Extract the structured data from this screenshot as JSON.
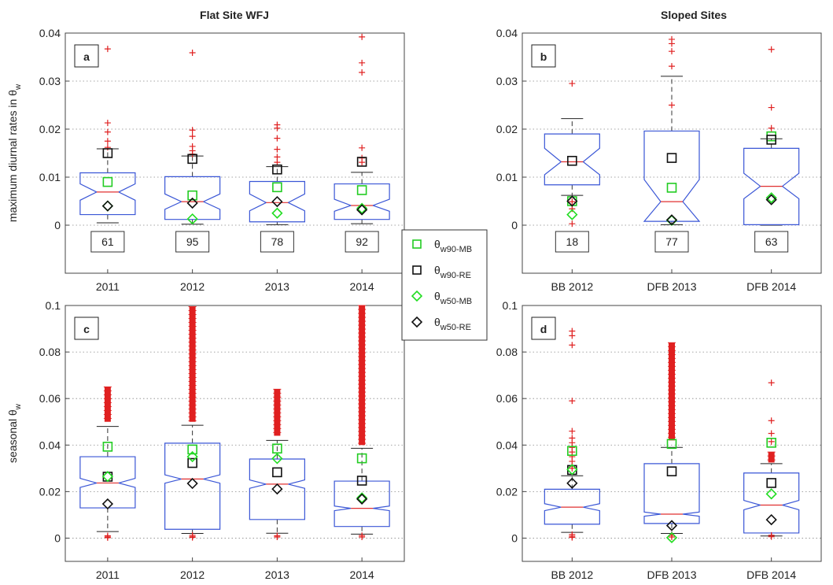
{
  "colors": {
    "box": "#3a56d6",
    "median": "#e03030",
    "outlier": "#e02020",
    "w90MB": "#22cc22",
    "w90RE": "#111111",
    "w50MB": "#22dd22",
    "w50RE": "#111111",
    "grid": "#888888",
    "frame": "#444444"
  },
  "column_titles": [
    "Flat Site WFJ",
    "Sloped Sites"
  ],
  "legend": {
    "items": [
      {
        "sym": "θ",
        "sub": "w90-MB",
        "marker": "square",
        "color": "#22cc22"
      },
      {
        "sym": "θ",
        "sub": "w90-RE",
        "marker": "square",
        "color": "#111111"
      },
      {
        "sym": "θ",
        "sub": "w50-MB",
        "marker": "diamond",
        "color": "#22dd22"
      },
      {
        "sym": "θ",
        "sub": "w50-RE",
        "marker": "diamond",
        "color": "#111111"
      }
    ]
  },
  "chart_data": [
    {
      "panel": "a",
      "type": "box",
      "ylabel": "maximum diurnal rates in θ",
      "ylabel_sub": "w",
      "categories": [
        "2011",
        "2012",
        "2013",
        "2014"
      ],
      "ylim": [
        -0.01,
        0.04
      ],
      "yticks": [
        0,
        0.01,
        0.02,
        0.03,
        0.04
      ],
      "ytick_labels": [
        "0",
        "0.01",
        "0.02",
        "0.03",
        "0.04"
      ],
      "grid": true,
      "boxes": [
        {
          "q1": 0.0022,
          "median": 0.0069,
          "q3": 0.0109,
          "notch_lo": 0.0052,
          "notch_hi": 0.0086,
          "wlo": 0.0005,
          "whi": 0.0159
        },
        {
          "q1": 0.0012,
          "median": 0.0049,
          "q3": 0.0101,
          "notch_lo": 0.0033,
          "notch_hi": 0.0065,
          "wlo": 0.0002,
          "whi": 0.0144
        },
        {
          "q1": 0.0007,
          "median": 0.0047,
          "q3": 0.0091,
          "notch_lo": 0.003,
          "notch_hi": 0.0065,
          "wlo": 0.0001,
          "whi": 0.0122
        },
        {
          "q1": 0.0012,
          "median": 0.0041,
          "q3": 0.0086,
          "notch_lo": 0.0029,
          "notch_hi": 0.0054,
          "wlo": 0.0003,
          "whi": 0.011
        }
      ],
      "outliers": [
        [
          0.0367,
          0.0213,
          0.0194,
          0.0175,
          0.0162
        ],
        [
          0.0359,
          0.0198,
          0.0185,
          0.0164,
          0.0155,
          0.0148
        ],
        [
          0.0209,
          0.0202,
          0.0181,
          0.0158,
          0.0142,
          0.0131
        ],
        [
          0.0392,
          0.0338,
          0.0318,
          0.0161,
          0.014,
          0.0131
        ]
      ],
      "w90_mb": [
        0.009,
        0.0062,
        0.0079,
        0.0073
      ],
      "w90_re": [
        0.015,
        0.0138,
        0.0116,
        0.0132
      ],
      "w50_mb": [
        0.004,
        0.0013,
        0.0025,
        0.0035
      ],
      "w50_re": [
        0.004,
        0.0046,
        0.0049,
        0.0032
      ],
      "counts": [
        "61",
        "95",
        "78",
        "92"
      ]
    },
    {
      "panel": "b",
      "type": "box",
      "categories": [
        "BB 2012",
        "DFB 2013",
        "DFB 2014"
      ],
      "ylim": [
        -0.01,
        0.04
      ],
      "yticks": [
        0,
        0.01,
        0.02,
        0.03,
        0.04
      ],
      "ytick_labels": [
        "0",
        "0.01",
        "0.02",
        "0.03",
        "0.04"
      ],
      "grid": true,
      "boxes": [
        {
          "q1": 0.0084,
          "median": 0.0132,
          "q3": 0.019,
          "notch_lo": 0.0105,
          "notch_hi": 0.016,
          "wlo": 0.0062,
          "whi": 0.0222
        },
        {
          "q1": 0.0008,
          "median": 0.0049,
          "q3": 0.0196,
          "notch_lo": 0.0007,
          "notch_hi": 0.0095,
          "wlo": 0.0001,
          "whi": 0.031
        },
        {
          "q1": 0.0001,
          "median": 0.0081,
          "q3": 0.016,
          "notch_lo": 0.0055,
          "notch_hi": 0.0108,
          "wlo": 0.0,
          "whi": 0.018
        }
      ],
      "outliers": [
        [
          0.0295,
          0.0049,
          0.0034,
          0.0003
        ],
        [
          0.0387,
          0.0378,
          0.0362,
          0.0331,
          0.025
        ],
        [
          0.0366,
          0.0245,
          0.0202
        ]
      ],
      "w90_mb": [
        0.005,
        0.0078,
        0.0185
      ],
      "w90_re": [
        0.0134,
        0.014,
        0.0178
      ],
      "w50_mb": [
        0.0022,
        0.001,
        0.0057
      ],
      "w50_re": [
        0.005,
        0.0011,
        0.0053
      ],
      "counts": [
        "18",
        "77",
        "63"
      ]
    },
    {
      "panel": "c",
      "type": "box",
      "ylabel": "seasonal θ",
      "ylabel_sub": "w",
      "categories": [
        "2011",
        "2012",
        "2013",
        "2014"
      ],
      "ylim": [
        -0.01,
        0.1
      ],
      "yticks": [
        0,
        0.02,
        0.04,
        0.06,
        0.08,
        0.1
      ],
      "ytick_labels": [
        "0",
        "0.02",
        "0.04",
        "0.06",
        "0.08",
        "0.1"
      ],
      "grid": true,
      "boxes": [
        {
          "q1": 0.013,
          "median": 0.0237,
          "q3": 0.035,
          "notch_lo": 0.0218,
          "notch_hi": 0.0257,
          "wlo": 0.0028,
          "whi": 0.048
        },
        {
          "q1": 0.0038,
          "median": 0.0254,
          "q3": 0.0408,
          "notch_lo": 0.0236,
          "notch_hi": 0.0272,
          "wlo": 0.002,
          "whi": 0.0485
        },
        {
          "q1": 0.008,
          "median": 0.0232,
          "q3": 0.034,
          "notch_lo": 0.0214,
          "notch_hi": 0.025,
          "wlo": 0.0021,
          "whi": 0.042
        },
        {
          "q1": 0.005,
          "median": 0.0128,
          "q3": 0.0245,
          "notch_lo": 0.0118,
          "notch_hi": 0.0138,
          "wlo": 0.0017,
          "whi": 0.0386
        }
      ],
      "outlier_bands": [
        [
          0.05,
          0.065
        ],
        [
          0.05,
          0.0995
        ],
        [
          0.044,
          0.064
        ],
        [
          0.04,
          0.1
        ]
      ],
      "outliers": [
        [
          0.001,
          0.0005,
          0.0002
        ],
        [
          0.0012,
          0.0006,
          0.0003
        ],
        [
          0.001,
          0.0005
        ],
        [
          0.0011,
          0.0005
        ]
      ],
      "w90_mb": [
        0.0393,
        0.0381,
        0.0385,
        0.0343
      ],
      "w90_re": [
        0.0264,
        0.0323,
        0.0283,
        0.0247
      ],
      "w50_mb": [
        0.0265,
        0.035,
        0.0342,
        0.0173
      ],
      "w50_re": [
        0.0147,
        0.0235,
        0.0211,
        0.0168
      ]
    },
    {
      "panel": "d",
      "type": "box",
      "categories": [
        "BB 2012",
        "DFB 2013",
        "DFB 2014"
      ],
      "ylim": [
        -0.01,
        0.1
      ],
      "yticks": [
        0,
        0.02,
        0.04,
        0.06,
        0.08
      ],
      "ytick_labels": [
        "0",
        "0.02",
        "0.04",
        "0.06",
        "0.08"
      ],
      "extra_tick_label": "0.1",
      "grid": true,
      "boxes": [
        {
          "q1": 0.006,
          "median": 0.0133,
          "q3": 0.021,
          "notch_lo": 0.0118,
          "notch_hi": 0.0148,
          "wlo": 0.0025,
          "whi": 0.0268
        },
        {
          "q1": 0.0063,
          "median": 0.0103,
          "q3": 0.032,
          "notch_lo": 0.0094,
          "notch_hi": 0.0112,
          "wlo": 0.002,
          "whi": 0.039
        },
        {
          "q1": 0.0022,
          "median": 0.0142,
          "q3": 0.028,
          "notch_lo": 0.0122,
          "notch_hi": 0.0162,
          "wlo": 0.0009,
          "whi": 0.032
        }
      ],
      "outlier_bands": [
        null,
        [
          0.042,
          0.084
        ],
        [
          0.0325,
          0.037
        ]
      ],
      "outliers": [
        [
          0.089,
          0.087,
          0.083,
          0.059,
          0.046,
          0.043,
          0.041,
          0.039,
          0.037,
          0.035,
          0.033,
          0.031,
          0.03,
          0.0015,
          0.0008,
          0.0003
        ],
        [
          0.0012,
          0.0005
        ],
        [
          0.0668,
          0.0505,
          0.045,
          0.0415,
          0.0012,
          0.0006
        ]
      ],
      "w90_mb": [
        0.0375,
        0.0405,
        0.041
      ],
      "w90_re": [
        0.0293,
        0.0287,
        0.0237
      ],
      "w50_mb": [
        0.0295,
        0.0002,
        0.019
      ],
      "w50_re": [
        0.0236,
        0.0054,
        0.0079
      ]
    }
  ]
}
